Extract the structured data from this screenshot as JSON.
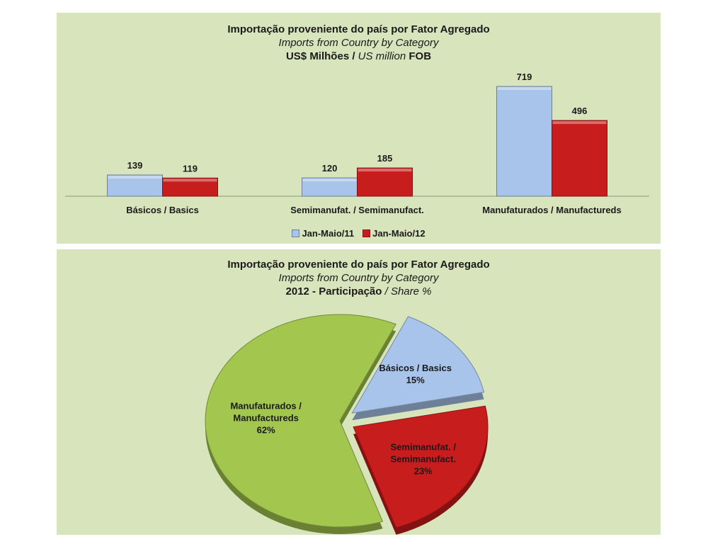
{
  "bar_panel": {
    "title": "Importação proveniente do país por Fator Agregado",
    "subtitle": "Imports from Country by Category",
    "unit_bold_a": "US$ Milhões /",
    "unit_italic": "US million",
    "unit_bold_b": "FOB"
  },
  "pie_panel": {
    "title": "Importação proveniente do país por Fator Agregado",
    "subtitle": "Imports from Country by Category",
    "unit_bold": "2012 - Participação",
    "unit_italic": "/ Share %"
  },
  "chart_data": [
    {
      "type": "bar",
      "title": "Importação proveniente do país por Fator Agregado",
      "subtitle": "Imports from Country by Category",
      "ylabel": "",
      "xlabel": "",
      "ylim": [
        0,
        719
      ],
      "grid": false,
      "legend_position": "bottom",
      "categories": [
        "Básicos / Basics",
        "Semimanufat. / Semimanufact.",
        "Manufaturados / Manufactureds"
      ],
      "series": [
        {
          "name": "Jan-Maio/11",
          "values": [
            139,
            120,
            719
          ],
          "color": "#a9c4ea"
        },
        {
          "name": "Jan-Maio/12",
          "values": [
            119,
            185,
            496
          ],
          "color": "#c81d1d"
        }
      ]
    },
    {
      "type": "pie",
      "title": "Importação proveniente do país por Fator Agregado",
      "subtitle": "Imports from Country by Category",
      "slices": [
        {
          "label_a": "Básicos / Basics",
          "label_b": "",
          "value": 15,
          "pct": "15%",
          "color": "#a9c4ea"
        },
        {
          "label_a": "Semimanufat. /",
          "label_b": "Semimanufact.",
          "value": 23,
          "pct": "23%",
          "color": "#c81d1d"
        },
        {
          "label_a": "Manufaturados /",
          "label_b": "Manufactureds",
          "value": 62,
          "pct": "62%",
          "color": "#a3c64f"
        }
      ]
    }
  ]
}
